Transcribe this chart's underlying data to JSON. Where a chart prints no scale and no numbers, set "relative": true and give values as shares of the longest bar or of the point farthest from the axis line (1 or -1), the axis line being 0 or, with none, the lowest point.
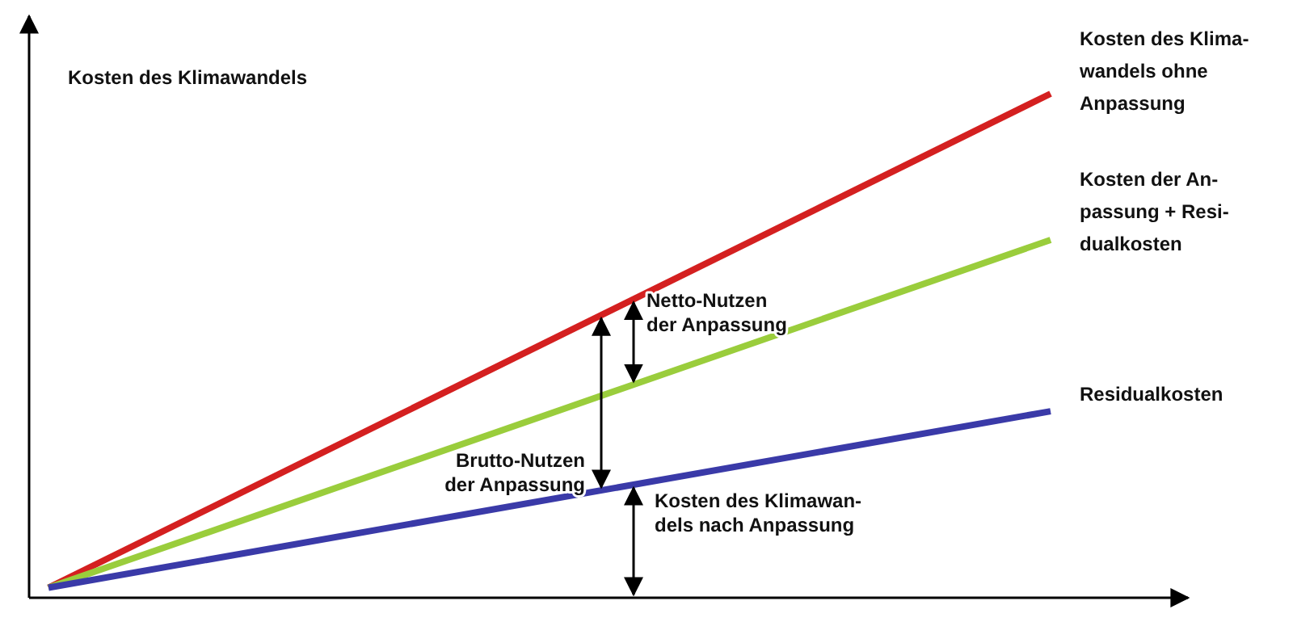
{
  "chart_data": {
    "type": "line",
    "relative": true,
    "ylabel": "Kosten des Klimawandels",
    "categories": [
      null,
      null
    ],
    "series": [
      {
        "name": "Kosten des Klima-\nwandels ohne\nAnpassung",
        "color": "#d42020",
        "values": [
          0.02,
          1
        ]
      },
      {
        "name": "Kosten der An-\npassung + Resi-\ndualkosten",
        "color": "#9acd3c",
        "values": [
          0.02,
          0.71
        ]
      },
      {
        "name": "Residualkosten",
        "color": "#3a3aa8",
        "values": [
          0.02,
          0.37
        ]
      }
    ],
    "annotations": [
      "Brutto-Nutzen\nder Anpassung",
      "Netto-Nutzen\nder Anpassung",
      "Kosten des Klimawan-\ndels nach Anpassung"
    ],
    "marker": "none",
    "line_style": "solid"
  }
}
